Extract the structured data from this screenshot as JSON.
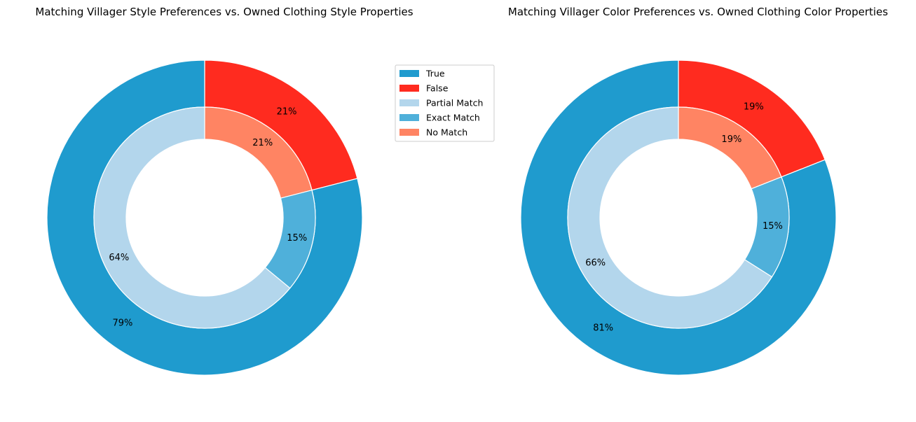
{
  "colors": {
    "True": "#1f9bce",
    "False": "#ff2b1f",
    "Partial Match": "#b3d6ec",
    "Exact Match": "#4fb0da",
    "No Match": "#ff8463"
  },
  "legend": {
    "items": [
      "True",
      "False",
      "Partial Match",
      "Exact Match",
      "No Match"
    ]
  },
  "chart_data": [
    {
      "type": "pie",
      "subtype": "nested-donut",
      "title": "Matching Villager Style Preferences vs. Owned Clothing Style Properties",
      "outer": {
        "labels": [
          "False",
          "True"
        ],
        "values": [
          21,
          79
        ],
        "pct_labels": [
          "21%",
          "79%"
        ]
      },
      "inner": {
        "labels": [
          "No Match",
          "Exact Match",
          "Partial Match"
        ],
        "values": [
          21,
          15,
          64
        ],
        "pct_labels": [
          "21%",
          "15%",
          "64%"
        ]
      },
      "legend_position": "upper right"
    },
    {
      "type": "pie",
      "subtype": "nested-donut",
      "title": "Matching Villager Color Preferences vs. Owned Clothing Color Properties",
      "outer": {
        "labels": [
          "False",
          "True"
        ],
        "values": [
          19,
          81
        ],
        "pct_labels": [
          "19%",
          "81%"
        ]
      },
      "inner": {
        "labels": [
          "No Match",
          "Exact Match",
          "Partial Match"
        ],
        "values": [
          19,
          15,
          66
        ],
        "pct_labels": [
          "19%",
          "15%",
          "66%"
        ]
      }
    }
  ]
}
